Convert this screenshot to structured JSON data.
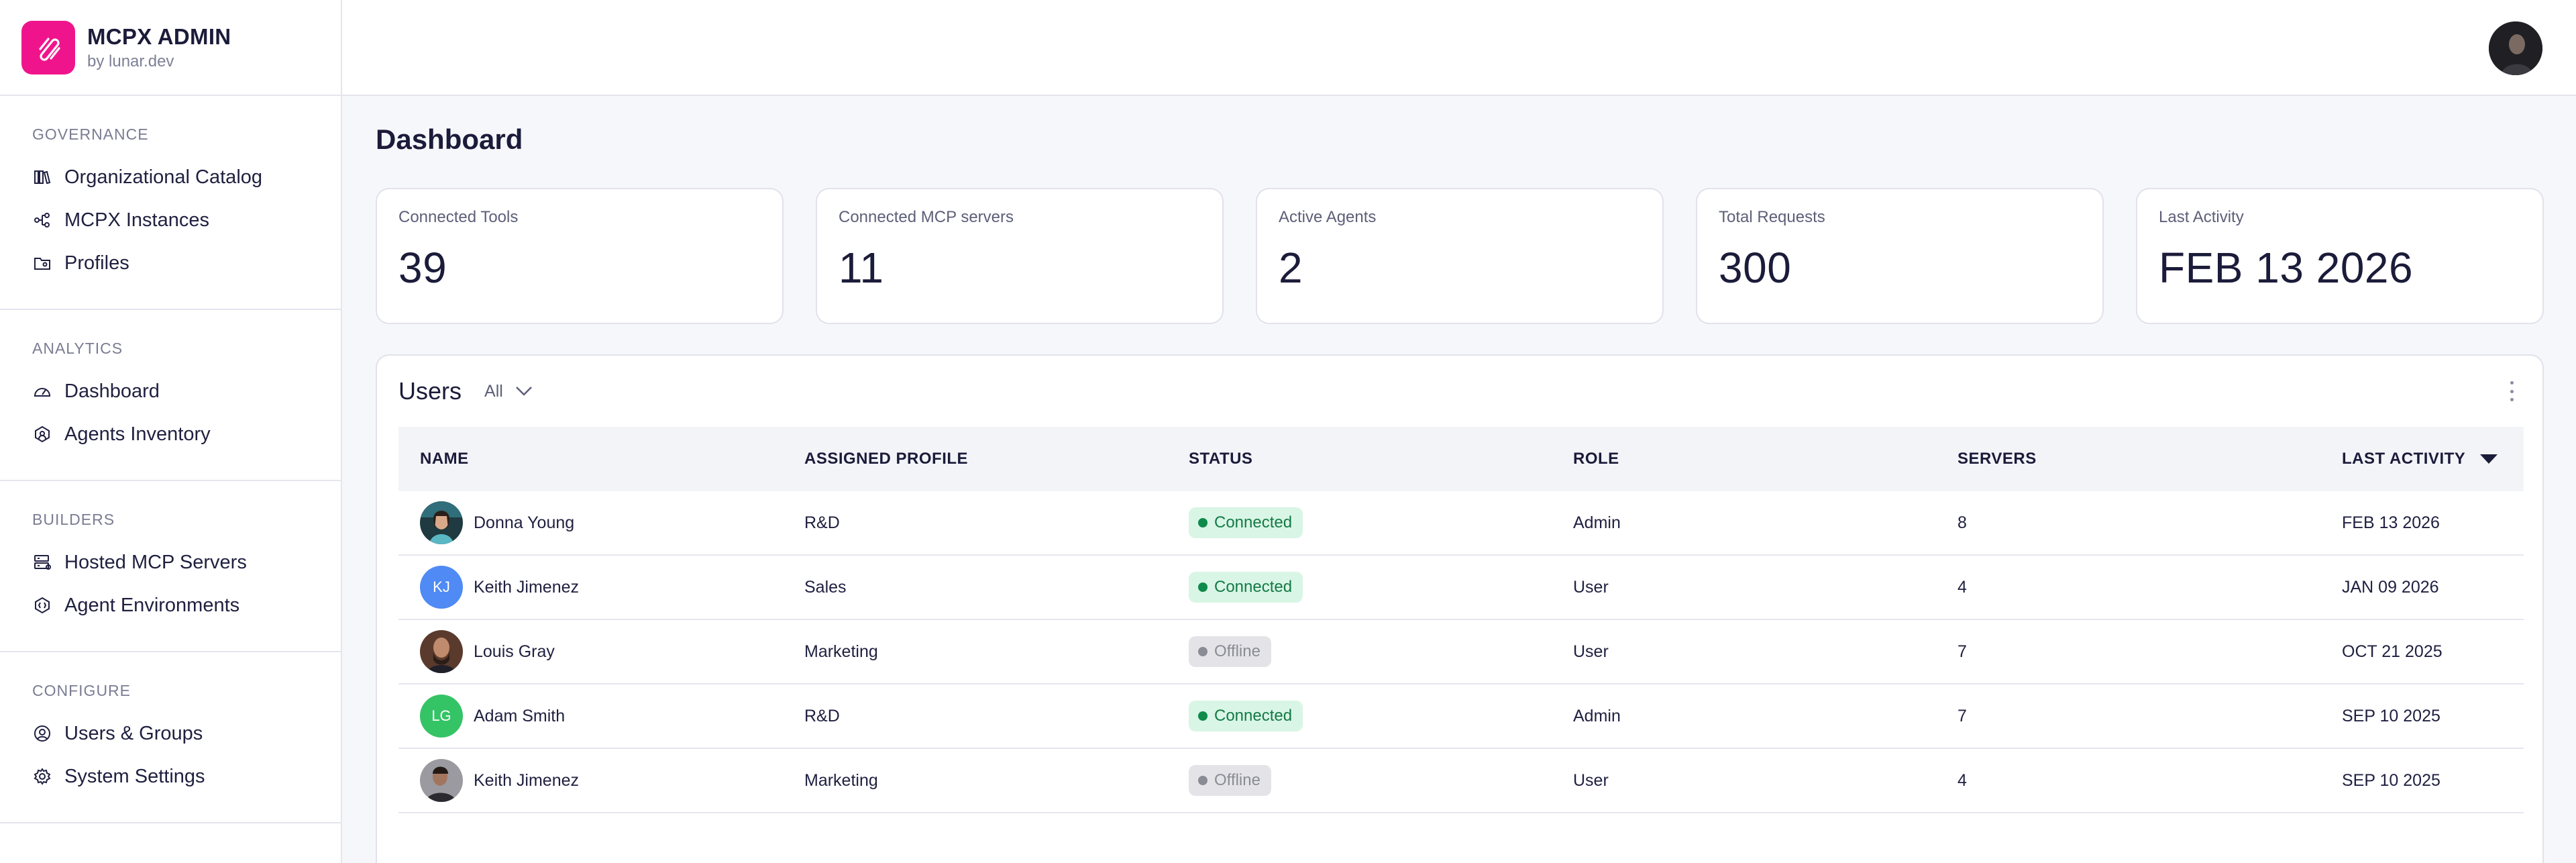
{
  "brand": {
    "title": "MCPX ADMIN",
    "subtitle": "by lunar.dev"
  },
  "sidebar": {
    "sections": [
      {
        "heading": "GOVERNANCE",
        "items": [
          {
            "label": "Organizational Catalog",
            "icon": "catalog-icon"
          },
          {
            "label": "MCPX Instances",
            "icon": "instances-icon"
          },
          {
            "label": "Profiles",
            "icon": "profiles-folder-icon"
          }
        ]
      },
      {
        "heading": "ANALYTICS",
        "items": [
          {
            "label": "Dashboard",
            "icon": "gauge-icon"
          },
          {
            "label": "Agents Inventory",
            "icon": "agents-icon"
          }
        ]
      },
      {
        "heading": "BUILDERS",
        "items": [
          {
            "label": "Hosted MCP Servers",
            "icon": "server-icon"
          },
          {
            "label": "Agent Environments",
            "icon": "environment-icon"
          }
        ]
      },
      {
        "heading": "CONFIGURE",
        "items": [
          {
            "label": "Users & Groups",
            "icon": "user-circle-icon"
          },
          {
            "label": "System Settings",
            "icon": "gear-icon"
          }
        ]
      }
    ]
  },
  "page": {
    "title": "Dashboard"
  },
  "stats": [
    {
      "label": "Connected Tools",
      "value": "39"
    },
    {
      "label": "Connected MCP servers",
      "value": "11"
    },
    {
      "label": "Active Agents",
      "value": "2"
    },
    {
      "label": "Total Requests",
      "value": "300"
    },
    {
      "label": "Last Activity",
      "value": "FEB 13 2026"
    }
  ],
  "users": {
    "title": "Users",
    "filter": "All",
    "columns": [
      "NAME",
      "ASSIGNED PROFILE",
      "STATUS",
      "ROLE",
      "SERVERS",
      "LAST ACTIVITY"
    ],
    "rows": [
      {
        "name": "Donna Young",
        "avatar": "photo",
        "profile": "R&D",
        "status": "Connected",
        "role": "Admin",
        "servers": "8",
        "last_activity": "FEB 13 2026"
      },
      {
        "name": "Keith Jimenez",
        "avatar": "KJ",
        "avatar_color": "#4f8af5",
        "profile": "Sales",
        "status": "Connected",
        "role": "User",
        "servers": "4",
        "last_activity": "JAN 09 2026"
      },
      {
        "name": "Louis Gray",
        "avatar": "photo",
        "profile": "Marketing",
        "status": "Offline",
        "role": "User",
        "servers": "7",
        "last_activity": "OCT 21 2025"
      },
      {
        "name": "Adam Smith",
        "avatar": "LG",
        "avatar_color": "#34c466",
        "profile": "R&D",
        "status": "Connected",
        "role": "Admin",
        "servers": "7",
        "last_activity": "SEP 10 2025"
      },
      {
        "name": "Keith Jimenez",
        "avatar": "photo",
        "profile": "Marketing",
        "status": "Offline",
        "role": "User",
        "servers": "4",
        "last_activity": "SEP 10 2025"
      }
    ]
  },
  "colors": {
    "accent": "#f0148c",
    "connected_bg": "#d9f5e6",
    "connected_text": "#137a45",
    "connected_dot": "#0e8a4a",
    "offline_bg": "#e4e4e8",
    "offline_text": "#8b8b95",
    "offline_dot": "#8b8b95"
  }
}
